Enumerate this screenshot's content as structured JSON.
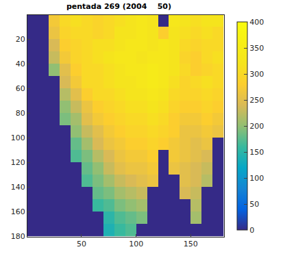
{
  "chart_data": {
    "type": "heatmap",
    "title": "pentada 269 (2004    50)",
    "x": [
      5,
      15,
      25,
      35,
      45,
      55,
      65,
      75,
      85,
      95,
      105,
      115,
      125,
      135,
      145,
      155,
      165,
      175
    ],
    "y": [
      5,
      15,
      25,
      35,
      45,
      55,
      65,
      75,
      85,
      95,
      105,
      115,
      125,
      135,
      145,
      155,
      165,
      175
    ],
    "z": [
      [
        0,
        0,
        270,
        300,
        310,
        300,
        290,
        300,
        310,
        320,
        330,
        320,
        0,
        330,
        320,
        310,
        320,
        320
      ],
      [
        0,
        0,
        260,
        290,
        300,
        300,
        290,
        300,
        320,
        320,
        330,
        320,
        280,
        320,
        310,
        300,
        310,
        300
      ],
      [
        0,
        0,
        240,
        280,
        290,
        300,
        310,
        310,
        320,
        330,
        330,
        320,
        330,
        320,
        300,
        290,
        300,
        300
      ],
      [
        0,
        0,
        230,
        270,
        290,
        300,
        310,
        320,
        330,
        330,
        320,
        330,
        330,
        320,
        290,
        280,
        300,
        310
      ],
      [
        0,
        0,
        200,
        250,
        280,
        300,
        300,
        310,
        320,
        330,
        330,
        340,
        330,
        320,
        300,
        280,
        290,
        300
      ],
      [
        0,
        0,
        0,
        240,
        270,
        300,
        300,
        310,
        320,
        320,
        330,
        340,
        330,
        310,
        290,
        300,
        310,
        300
      ],
      [
        0,
        0,
        0,
        220,
        250,
        280,
        300,
        300,
        310,
        320,
        320,
        330,
        320,
        300,
        290,
        290,
        300,
        290
      ],
      [
        0,
        0,
        0,
        200,
        230,
        260,
        280,
        290,
        300,
        310,
        310,
        320,
        310,
        290,
        280,
        280,
        290,
        280
      ],
      [
        0,
        0,
        0,
        190,
        210,
        250,
        270,
        280,
        290,
        300,
        300,
        310,
        300,
        280,
        270,
        270,
        280,
        270
      ],
      [
        0,
        0,
        0,
        0,
        200,
        230,
        250,
        270,
        280,
        290,
        290,
        300,
        290,
        280,
        260,
        260,
        270,
        260
      ],
      [
        0,
        0,
        0,
        0,
        180,
        210,
        240,
        260,
        270,
        280,
        280,
        290,
        280,
        270,
        260,
        250,
        260,
        0
      ],
      [
        0,
        0,
        0,
        0,
        170,
        190,
        220,
        240,
        260,
        270,
        270,
        280,
        0,
        270,
        260,
        250,
        240,
        0
      ],
      [
        0,
        0,
        0,
        0,
        0,
        180,
        200,
        230,
        250,
        260,
        260,
        270,
        0,
        260,
        250,
        240,
        230,
        0
      ],
      [
        0,
        0,
        0,
        0,
        0,
        170,
        190,
        210,
        230,
        240,
        250,
        260,
        0,
        0,
        250,
        240,
        220,
        0
      ],
      [
        0,
        0,
        0,
        0,
        0,
        0,
        180,
        190,
        210,
        220,
        230,
        0,
        0,
        0,
        240,
        230,
        0,
        0
      ],
      [
        0,
        0,
        0,
        0,
        0,
        0,
        160,
        170,
        190,
        200,
        210,
        0,
        0,
        0,
        0,
        220,
        0,
        0
      ],
      [
        0,
        0,
        0,
        0,
        0,
        0,
        0,
        150,
        170,
        180,
        190,
        0,
        0,
        0,
        0,
        210,
        0,
        0
      ],
      [
        0,
        0,
        0,
        0,
        0,
        0,
        0,
        140,
        160,
        170,
        0,
        0,
        0,
        0,
        0,
        0,
        0,
        0
      ]
    ],
    "xlim": [
      0.5,
      180.5
    ],
    "ylim": [
      180.5,
      0.5
    ],
    "xticks": [
      50,
      100,
      150
    ],
    "yticks": [
      20,
      40,
      60,
      80,
      100,
      120,
      140,
      160,
      180
    ],
    "zlim": [
      0,
      400
    ],
    "zticks": [
      0,
      50,
      100,
      150,
      200,
      250,
      300,
      350,
      400
    ]
  }
}
